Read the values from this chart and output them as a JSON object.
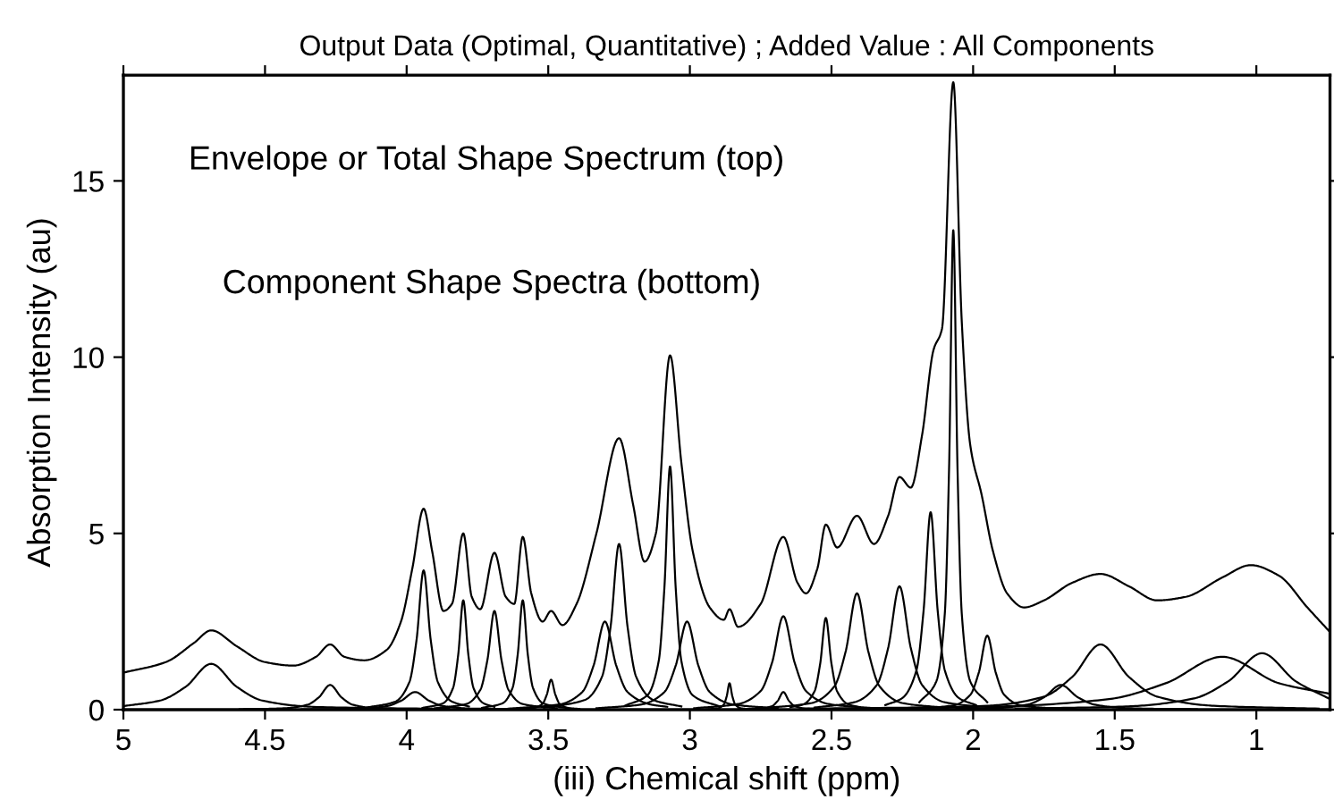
{
  "chart_data": {
    "type": "line",
    "title": "Output Data (Optimal, Quantitative) ; Added Value : All Components",
    "xlabel": "(iii) Chemical shift (ppm)",
    "ylabel": "Absorption Intensity (au)",
    "annotations": [
      "Envelope or Total Shape Spectrum (top)",
      "Component Shape Spectra (bottom)"
    ],
    "xlim": [
      5,
      0.74
    ],
    "ylim": [
      0,
      18
    ],
    "xticks": [
      5,
      4.5,
      4,
      3.5,
      3,
      2.5,
      2,
      1.5,
      1
    ],
    "yticks": [
      0,
      5,
      10,
      15
    ],
    "grid": false,
    "legend": false,
    "marker": "none",
    "line_style": "solid",
    "series": [
      {
        "color": "#000000",
        "x": [
          5,
          4.85,
          4.75,
          4.69,
          4.6,
          4.5,
          4.4,
          4.32,
          4.27,
          4.22,
          4.15,
          4.07,
          4.02,
          3.98,
          3.94,
          3.91,
          3.87,
          3.84,
          3.8,
          3.77,
          3.74,
          3.69,
          3.65,
          3.62,
          3.59,
          3.56,
          3.52,
          3.49,
          3.45,
          3.4,
          3.33,
          3.25,
          3.2,
          3.16,
          3.12,
          3.07,
          3.03,
          2.99,
          2.93,
          2.88,
          2.86,
          2.83,
          2.75,
          2.67,
          2.62,
          2.59,
          2.55,
          2.52,
          2.48,
          2.41,
          2.35,
          2.3,
          2.26,
          2.22,
          2.18,
          2.14,
          2.11,
          2.07,
          2.04,
          2.01,
          1.97,
          1.93,
          1.88,
          1.82,
          1.75,
          1.65,
          1.55,
          1.45,
          1.35,
          1.25,
          1.12,
          1.02,
          0.92,
          0.82,
          0.74
        ],
        "values": [
          1.05,
          1.35,
          1.9,
          2.25,
          1.8,
          1.35,
          1.25,
          1.5,
          1.85,
          1.5,
          1.4,
          1.7,
          2.5,
          4.0,
          5.7,
          4.5,
          2.8,
          3.0,
          5.0,
          3.2,
          2.85,
          4.45,
          3.2,
          3.0,
          4.9,
          3.3,
          2.5,
          2.8,
          2.4,
          3.0,
          5.0,
          7.7,
          5.8,
          4.2,
          5.0,
          10.05,
          7.0,
          4.5,
          2.9,
          2.55,
          2.85,
          2.35,
          3.0,
          4.9,
          3.6,
          3.3,
          4.0,
          5.25,
          4.6,
          5.5,
          4.7,
          5.5,
          6.6,
          6.3,
          7.8,
          10.2,
          10.8,
          17.8,
          11,
          7.5,
          6.1,
          4.5,
          3.3,
          2.9,
          3.1,
          3.6,
          3.85,
          3.5,
          3.1,
          3.2,
          3.75,
          4.1,
          3.8,
          2.9,
          2.2
        ]
      },
      {
        "color": "#000000",
        "x": [
          5,
          4.87,
          4.78,
          4.69,
          4.6,
          4.51,
          4.33,
          3.85
        ],
        "values": [
          0.1,
          0.26,
          0.65,
          1.3,
          0.65,
          0.26,
          0.08,
          0.02
        ]
      },
      {
        "color": "#000000",
        "x": [
          4.59,
          4.43,
          4.35,
          4.31,
          4.27,
          4.23,
          4.19,
          4.11,
          4.03
        ],
        "values": [
          0.01,
          0.04,
          0.14,
          0.35,
          0.7,
          0.35,
          0.14,
          0.04,
          0.02
        ]
      },
      {
        "color": "#000000",
        "x": [
          4.37,
          4.17,
          4.07,
          4.02,
          3.97,
          3.92,
          3.87,
          3.77,
          3.56
        ],
        "values": [
          0.01,
          0.03,
          0.1,
          0.25,
          0.5,
          0.25,
          0.1,
          0.03,
          0.01
        ]
      },
      {
        "color": "#000000",
        "x": [
          4.14,
          4.04,
          3.99,
          3.965,
          3.94,
          3.915,
          3.89,
          3.84,
          3.78
        ],
        "values": [
          0.06,
          0.23,
          0.79,
          1.98,
          3.95,
          1.98,
          0.79,
          0.23,
          0.09
        ]
      },
      {
        "color": "#000000",
        "x": [
          3.944,
          3.872,
          3.836,
          3.818,
          3.8,
          3.782,
          3.764,
          3.728,
          3.69
        ],
        "values": [
          0.05,
          0.18,
          0.62,
          1.55,
          3.1,
          1.55,
          0.62,
          0.18,
          0.08
        ]
      },
      {
        "color": "#000000",
        "x": [
          3.9,
          3.79,
          3.74,
          3.715,
          3.69,
          3.665,
          3.64,
          3.59,
          3.47
        ],
        "values": [
          0.04,
          0.16,
          0.56,
          1.4,
          2.8,
          1.4,
          0.56,
          0.16,
          0.04
        ]
      },
      {
        "color": "#000000",
        "x": [
          3.734,
          3.662,
          3.626,
          3.608,
          3.59,
          3.572,
          3.554,
          3.518,
          3.43
        ],
        "values": [
          0.05,
          0.18,
          0.62,
          1.55,
          3.1,
          1.55,
          0.62,
          0.18,
          0.04
        ]
      },
      {
        "color": "#000000",
        "x": [
          3.6,
          3.55,
          3.52,
          3.505,
          3.49,
          3.475,
          3.46,
          3.43,
          3.39
        ],
        "values": [
          0.02,
          0.05,
          0.17,
          0.43,
          0.85,
          0.43,
          0.17,
          0.05,
          0.02
        ]
      },
      {
        "color": "#000000",
        "x": [
          3.64,
          3.46,
          3.38,
          3.34,
          3.3,
          3.26,
          3.22,
          3.14,
          3.08
        ],
        "values": [
          0.03,
          0.15,
          0.5,
          1.25,
          2.5,
          1.25,
          0.5,
          0.15,
          0.08
        ]
      },
      {
        "color": "#000000",
        "x": [
          3.515,
          3.37,
          3.31,
          3.28,
          3.25,
          3.22,
          3.19,
          3.13,
          3.03
        ],
        "values": [
          0.06,
          0.28,
          0.94,
          2.35,
          4.7,
          2.35,
          0.94,
          0.28,
          0.09
        ]
      },
      {
        "color": "#000000",
        "x": [
          3.23,
          3.15,
          3.11,
          3.09,
          3.07,
          3.05,
          3.03,
          2.99,
          2.895
        ],
        "values": [
          0.11,
          0.41,
          1.38,
          3.45,
          6.9,
          3.45,
          1.38,
          0.41,
          0.09
        ]
      },
      {
        "color": "#000000",
        "x": [
          3.33,
          3.17,
          3.09,
          3.05,
          3.01,
          2.97,
          2.93,
          2.85,
          2.69
        ],
        "values": [
          0.04,
          0.15,
          0.5,
          1.25,
          2.5,
          1.25,
          0.5,
          0.15,
          0.04
        ]
      },
      {
        "color": "#000000",
        "x": [
          2.94,
          2.9,
          2.88,
          2.87,
          2.86,
          2.85,
          2.84,
          2.82,
          2.78
        ],
        "values": [
          0.01,
          0.04,
          0.15,
          0.38,
          0.75,
          0.38,
          0.15,
          0.04,
          0.01
        ]
      },
      {
        "color": "#000000",
        "x": [
          2.83,
          2.75,
          2.71,
          2.69,
          2.67,
          2.65,
          2.63,
          2.59,
          2.51
        ],
        "values": [
          0.01,
          0.03,
          0.1,
          0.25,
          0.5,
          0.25,
          0.1,
          0.03,
          0.01
        ]
      },
      {
        "color": "#000000",
        "x": [
          2.985,
          2.83,
          2.75,
          2.71,
          2.67,
          2.63,
          2.59,
          2.51,
          2.35
        ],
        "values": [
          0.04,
          0.16,
          0.53,
          1.33,
          2.65,
          1.33,
          0.53,
          0.16,
          0.04
        ]
      },
      {
        "color": "#000000",
        "x": [
          2.645,
          2.6,
          2.56,
          2.54,
          2.52,
          2.5,
          2.48,
          2.44,
          2.4
        ],
        "values": [
          0.07,
          0.15,
          0.52,
          1.3,
          2.6,
          1.3,
          0.52,
          0.15,
          0.07
        ]
      },
      {
        "color": "#000000",
        "x": [
          2.73,
          2.57,
          2.49,
          2.45,
          2.41,
          2.37,
          2.33,
          2.25,
          2.09
        ],
        "values": [
          0.05,
          0.19,
          0.66,
          1.65,
          3.3,
          1.65,
          0.66,
          0.19,
          0.05
        ]
      },
      {
        "color": "#000000",
        "x": [
          2.56,
          2.42,
          2.34,
          2.3,
          2.26,
          2.22,
          2.18,
          2.1,
          1.9
        ],
        "values": [
          0.06,
          0.21,
          0.7,
          1.75,
          3.5,
          1.75,
          0.7,
          0.21,
          0.04
        ]
      },
      {
        "color": "#000000",
        "x": [
          2.31,
          2.25,
          2.2,
          2.175,
          2.15,
          2.125,
          2.1,
          2.05,
          1.99
        ],
        "values": [
          0.13,
          0.33,
          1.12,
          2.8,
          5.6,
          2.8,
          1.12,
          0.33,
          0.13
        ]
      },
      {
        "color": "#000000",
        "x": [
          2.19,
          2.13,
          2.1,
          2.085,
          2.07,
          2.055,
          2.04,
          2.01,
          1.95
        ],
        "values": [
          0.21,
          0.8,
          2.72,
          6.8,
          13.6,
          6.8,
          2.72,
          0.8,
          0.21
        ]
      },
      {
        "color": "#000000",
        "x": [
          2.23,
          2.07,
          2.01,
          1.98,
          1.95,
          1.92,
          1.89,
          1.83,
          1.71
        ],
        "values": [
          0.02,
          0.12,
          0.42,
          1.05,
          2.1,
          1.05,
          0.42,
          0.12,
          0.03
        ]
      },
      {
        "color": "#000000",
        "x": [
          2.145,
          1.93,
          1.81,
          1.75,
          1.69,
          1.63,
          1.57,
          1.45,
          1.21
        ],
        "values": [
          0.01,
          0.04,
          0.14,
          0.35,
          0.7,
          0.35,
          0.14,
          0.04,
          0.01
        ]
      },
      {
        "color": "#000000",
        "x": [
          2.45,
          1.95,
          1.75,
          1.65,
          1.55,
          1.45,
          1.35,
          1.15,
          0.78
        ],
        "values": [
          0.02,
          0.11,
          0.37,
          0.93,
          1.85,
          0.93,
          0.37,
          0.11,
          0.03
        ]
      },
      {
        "color": "#000000",
        "x": [
          2.6,
          1.92,
          1.52,
          1.32,
          1.12,
          0.92,
          0.74
        ],
        "values": [
          0.03,
          0.09,
          0.3,
          0.75,
          1.5,
          0.75,
          0.45
        ]
      },
      {
        "color": "#000000",
        "x": [
          1.85,
          1.46,
          1.22,
          1.1,
          0.98,
          0.86,
          0.74
        ],
        "values": [
          0.03,
          0.09,
          0.32,
          0.8,
          1.6,
          0.8,
          0.3
        ]
      }
    ]
  }
}
